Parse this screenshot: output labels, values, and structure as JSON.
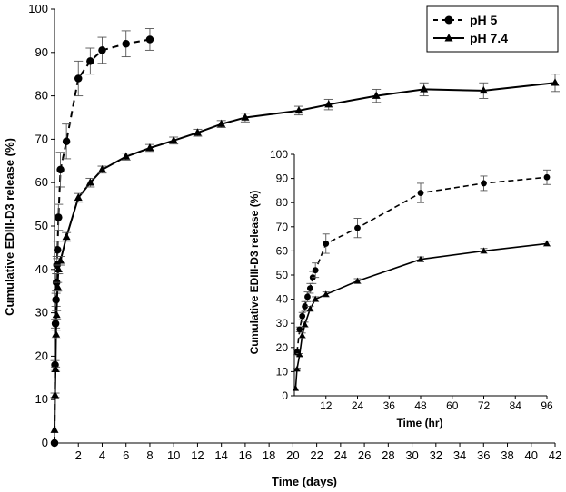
{
  "chart_data": [
    {
      "type": "line",
      "xlabel": "Time (days)",
      "ylabel": "Cumulative EDIII-D3 release (%)",
      "xlim": [
        0,
        42
      ],
      "ylim": [
        0,
        100
      ],
      "xticks": [
        2,
        4,
        6,
        8,
        10,
        12,
        14,
        16,
        18,
        20,
        22,
        24,
        26,
        28,
        30,
        32,
        34,
        36,
        38,
        40,
        42
      ],
      "yticks": [
        0,
        10,
        20,
        30,
        40,
        50,
        60,
        70,
        80,
        90,
        100
      ],
      "grid": false,
      "legend_position": "top-right",
      "series": [
        {
          "name": "pH 5",
          "style": "dashed",
          "marker": "circle",
          "x": [
            0,
            0.0417,
            0.083,
            0.125,
            0.167,
            0.208,
            0.25,
            0.33,
            0.5,
            1,
            2,
            3,
            4,
            6,
            8
          ],
          "y": [
            0,
            18,
            27.5,
            33,
            37,
            41,
            44.5,
            52,
            63,
            69.5,
            84,
            88,
            90.5,
            92,
            93
          ],
          "err": [
            0,
            1,
            1,
            1.5,
            2,
            2,
            2,
            3,
            4,
            4,
            4,
            3,
            3,
            3,
            2.5
          ]
        },
        {
          "name": "pH 7.4",
          "style": "solid",
          "marker": "triangle",
          "x": [
            0,
            0.0417,
            0.083,
            0.125,
            0.167,
            0.25,
            0.33,
            0.5,
            1,
            2,
            3,
            4,
            6,
            8,
            10,
            12,
            14,
            16,
            20.5,
            23,
            27,
            31,
            36,
            42
          ],
          "y": [
            3,
            11,
            17,
            25,
            29.5,
            36,
            40,
            42,
            47.5,
            56.5,
            60,
            63,
            66,
            68,
            69.7,
            71.5,
            73.5,
            75,
            76.6,
            78,
            80,
            81.5,
            81.2,
            83
          ],
          "err": [
            0,
            0.5,
            0.5,
            1,
            1,
            1,
            1,
            1,
            1,
            1,
            1,
            0.8,
            0.8,
            0.8,
            0.8,
            0.8,
            0.8,
            1,
            1,
            1.2,
            1.5,
            1.5,
            1.8,
            2
          ]
        }
      ]
    },
    {
      "type": "line",
      "xlabel": "Time (hr)",
      "ylabel": "Cumulative EDIII-D3 release (%)",
      "xlim": [
        0,
        96
      ],
      "ylim": [
        0,
        100
      ],
      "xticks": [
        12,
        24,
        36,
        48,
        60,
        72,
        84,
        96
      ],
      "yticks": [
        0,
        10,
        20,
        30,
        40,
        50,
        60,
        70,
        80,
        90,
        100
      ],
      "grid": false,
      "series": [
        {
          "name": "pH 5",
          "style": "dashed",
          "marker": "circle",
          "x": [
            1,
            2,
            3,
            4,
            5,
            6,
            7,
            8,
            12,
            24,
            48,
            72,
            96
          ],
          "y": [
            18,
            27.5,
            33,
            37,
            41,
            44.5,
            49,
            52,
            63,
            69.5,
            84,
            88,
            90.5
          ],
          "err": [
            1,
            1,
            1.5,
            2,
            2,
            2,
            2.5,
            3,
            4,
            4,
            4,
            3,
            3
          ]
        },
        {
          "name": "pH 7.4",
          "style": "solid",
          "marker": "triangle",
          "x": [
            0.5,
            1,
            2,
            3,
            4,
            6,
            8,
            12,
            24,
            48,
            72,
            96
          ],
          "y": [
            3,
            11,
            17,
            25,
            29.5,
            36,
            40,
            42,
            47.5,
            56.5,
            60,
            63
          ],
          "err": [
            0,
            0.5,
            0.5,
            1,
            1,
            1,
            1,
            1,
            1,
            1,
            1,
            1
          ]
        }
      ]
    }
  ]
}
